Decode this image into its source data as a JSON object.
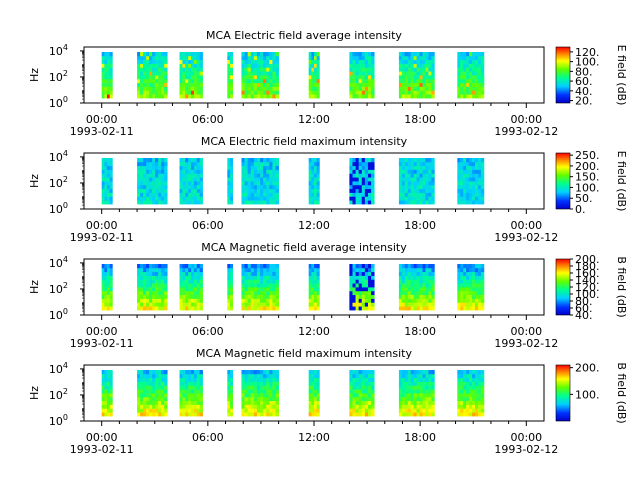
{
  "chart_data": [
    {
      "type": "heatmap",
      "title": "MCA  Electric field average intensity",
      "ylabel": "Hz",
      "y_tick_exponents": [
        "0",
        "2",
        "4"
      ],
      "y_tick_base": "10",
      "x_tick_labels": [
        "00:00",
        "06:00",
        "12:00",
        "18:00",
        "00:00"
      ],
      "x_date_labels": [
        "1993-02-11",
        "1993-02-12"
      ],
      "colorbar": {
        "label": "E field (dB)",
        "range": [
          15,
          130
        ],
        "ticks": [
          {
            "v": 20,
            "label": "20."
          },
          {
            "v": 40,
            "label": "40."
          },
          {
            "v": 60,
            "label": "60."
          },
          {
            "v": 80,
            "label": "80."
          },
          {
            "v": 100,
            "label": "100."
          },
          {
            "v": 120,
            "label": "120."
          }
        ]
      },
      "data_segments_hours": [
        [
          0.0,
          0.6
        ],
        [
          2.0,
          3.7
        ],
        [
          4.4,
          5.7
        ],
        [
          7.1,
          7.4
        ],
        [
          7.9,
          10.0
        ],
        [
          11.7,
          12.3
        ],
        [
          14.0,
          15.4
        ],
        [
          16.8,
          18.8
        ],
        [
          20.1,
          21.6
        ]
      ]
    },
    {
      "type": "heatmap",
      "title": "MCA  Electric field maximum intensity",
      "ylabel": "Hz",
      "y_tick_exponents": [
        "0",
        "2",
        "4"
      ],
      "y_tick_base": "10",
      "x_tick_labels": [
        "00:00",
        "06:00",
        "12:00",
        "18:00",
        "00:00"
      ],
      "x_date_labels": [
        "1993-02-11",
        "1993-02-12"
      ],
      "colorbar": {
        "label": "E field (dB)",
        "range": [
          0,
          260
        ],
        "ticks": [
          {
            "v": 0,
            "label": "0."
          },
          {
            "v": 50,
            "label": "50."
          },
          {
            "v": 100,
            "label": "100."
          },
          {
            "v": 150,
            "label": "150."
          },
          {
            "v": 200,
            "label": "200."
          },
          {
            "v": 250,
            "label": "250."
          }
        ]
      },
      "data_segments_hours": [
        [
          0.0,
          0.6
        ],
        [
          2.0,
          3.7
        ],
        [
          4.4,
          5.7
        ],
        [
          7.1,
          7.4
        ],
        [
          7.9,
          10.0
        ],
        [
          11.7,
          12.3
        ],
        [
          14.0,
          15.4
        ],
        [
          16.8,
          18.8
        ],
        [
          20.1,
          21.6
        ]
      ]
    },
    {
      "type": "heatmap",
      "title": "MCA  Magnetic field average intensity",
      "ylabel": "Hz",
      "y_tick_exponents": [
        "0",
        "2",
        "4"
      ],
      "y_tick_base": "10",
      "x_tick_labels": [
        "00:00",
        "06:00",
        "12:00",
        "18:00",
        "00:00"
      ],
      "x_date_labels": [
        "1993-02-11",
        "1993-02-12"
      ],
      "colorbar": {
        "label": "B field (dB)",
        "range": [
          40,
          200
        ],
        "ticks": [
          {
            "v": 40,
            "label": "40."
          },
          {
            "v": 60,
            "label": "60."
          },
          {
            "v": 80,
            "label": "80."
          },
          {
            "v": 100,
            "label": "100."
          },
          {
            "v": 120,
            "label": "120."
          },
          {
            "v": 140,
            "label": "140."
          },
          {
            "v": 160,
            "label": "160."
          },
          {
            "v": 180,
            "label": "180."
          },
          {
            "v": 200,
            "label": "200."
          }
        ]
      },
      "data_segments_hours": [
        [
          0.0,
          0.6
        ],
        [
          2.0,
          3.7
        ],
        [
          4.4,
          5.7
        ],
        [
          7.1,
          7.4
        ],
        [
          7.9,
          10.0
        ],
        [
          11.7,
          12.3
        ],
        [
          14.0,
          15.4
        ],
        [
          16.8,
          18.8
        ],
        [
          20.1,
          21.6
        ]
      ]
    },
    {
      "type": "heatmap",
      "title": "MCA  Magnetic field maximum intensity",
      "ylabel": "Hz",
      "y_tick_exponents": [
        "0",
        "2",
        "4"
      ],
      "y_tick_base": "10",
      "x_tick_labels": [
        "00:00",
        "06:00",
        "12:00",
        "18:00",
        "00:00"
      ],
      "x_date_labels": [
        "1993-02-11",
        "1993-02-12"
      ],
      "colorbar": {
        "label": "B field (dB)",
        "range": [
          0,
          210
        ],
        "ticks": [
          {
            "v": 100,
            "label": "100."
          },
          {
            "v": 200,
            "label": "200."
          }
        ]
      },
      "data_segments_hours": [
        [
          0.0,
          0.6
        ],
        [
          2.0,
          3.7
        ],
        [
          4.4,
          5.7
        ],
        [
          7.1,
          7.4
        ],
        [
          7.9,
          10.0
        ],
        [
          11.7,
          12.3
        ],
        [
          14.0,
          15.4
        ],
        [
          16.8,
          18.8
        ],
        [
          20.1,
          21.6
        ]
      ]
    }
  ]
}
